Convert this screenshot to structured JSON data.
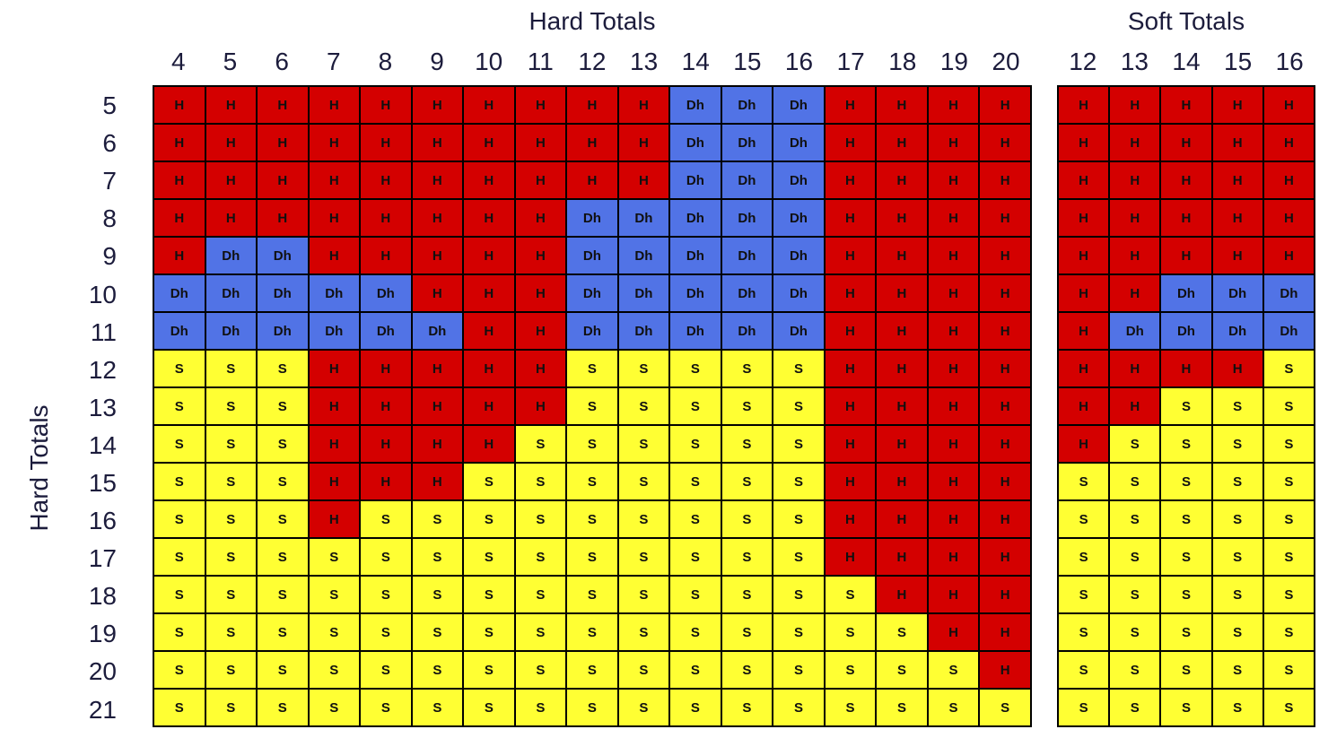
{
  "colors": {
    "H": "#d40000",
    "Dh": "#5173e6",
    "S": "#ffff33"
  },
  "chart_data": [
    {
      "type": "heatmap",
      "title": "Hard Totals",
      "ylabel": "Hard Totals",
      "columns": [
        "4",
        "5",
        "6",
        "7",
        "8",
        "9",
        "10",
        "11",
        "12",
        "13",
        "14",
        "15",
        "16",
        "17",
        "18",
        "19",
        "20"
      ],
      "rows": [
        "5",
        "6",
        "7",
        "8",
        "9",
        "10",
        "11",
        "12",
        "13",
        "14",
        "15",
        "16",
        "17",
        "18",
        "19",
        "20",
        "21"
      ],
      "values": [
        [
          "H",
          "H",
          "H",
          "H",
          "H",
          "H",
          "H",
          "H",
          "H",
          "H",
          "Dh",
          "Dh",
          "Dh",
          "H",
          "H",
          "H",
          "H"
        ],
        [
          "H",
          "H",
          "H",
          "H",
          "H",
          "H",
          "H",
          "H",
          "H",
          "H",
          "Dh",
          "Dh",
          "Dh",
          "H",
          "H",
          "H",
          "H"
        ],
        [
          "H",
          "H",
          "H",
          "H",
          "H",
          "H",
          "H",
          "H",
          "H",
          "H",
          "Dh",
          "Dh",
          "Dh",
          "H",
          "H",
          "H",
          "H"
        ],
        [
          "H",
          "H",
          "H",
          "H",
          "H",
          "H",
          "H",
          "H",
          "Dh",
          "Dh",
          "Dh",
          "Dh",
          "Dh",
          "H",
          "H",
          "H",
          "H"
        ],
        [
          "H",
          "Dh",
          "Dh",
          "H",
          "H",
          "H",
          "H",
          "H",
          "Dh",
          "Dh",
          "Dh",
          "Dh",
          "Dh",
          "H",
          "H",
          "H",
          "H"
        ],
        [
          "Dh",
          "Dh",
          "Dh",
          "Dh",
          "Dh",
          "H",
          "H",
          "H",
          "Dh",
          "Dh",
          "Dh",
          "Dh",
          "Dh",
          "H",
          "H",
          "H",
          "H"
        ],
        [
          "Dh",
          "Dh",
          "Dh",
          "Dh",
          "Dh",
          "Dh",
          "H",
          "H",
          "Dh",
          "Dh",
          "Dh",
          "Dh",
          "Dh",
          "H",
          "H",
          "H",
          "H"
        ],
        [
          "S",
          "S",
          "S",
          "H",
          "H",
          "H",
          "H",
          "H",
          "S",
          "S",
          "S",
          "S",
          "S",
          "H",
          "H",
          "H",
          "H"
        ],
        [
          "S",
          "S",
          "S",
          "H",
          "H",
          "H",
          "H",
          "H",
          "S",
          "S",
          "S",
          "S",
          "S",
          "H",
          "H",
          "H",
          "H"
        ],
        [
          "S",
          "S",
          "S",
          "H",
          "H",
          "H",
          "H",
          "S",
          "S",
          "S",
          "S",
          "S",
          "S",
          "H",
          "H",
          "H",
          "H"
        ],
        [
          "S",
          "S",
          "S",
          "H",
          "H",
          "H",
          "S",
          "S",
          "S",
          "S",
          "S",
          "S",
          "S",
          "H",
          "H",
          "H",
          "H"
        ],
        [
          "S",
          "S",
          "S",
          "H",
          "S",
          "S",
          "S",
          "S",
          "S",
          "S",
          "S",
          "S",
          "S",
          "H",
          "H",
          "H",
          "H"
        ],
        [
          "S",
          "S",
          "S",
          "S",
          "S",
          "S",
          "S",
          "S",
          "S",
          "S",
          "S",
          "S",
          "S",
          "H",
          "H",
          "H",
          "H"
        ],
        [
          "S",
          "S",
          "S",
          "S",
          "S",
          "S",
          "S",
          "S",
          "S",
          "S",
          "S",
          "S",
          "S",
          "S",
          "H",
          "H",
          "H"
        ],
        [
          "S",
          "S",
          "S",
          "S",
          "S",
          "S",
          "S",
          "S",
          "S",
          "S",
          "S",
          "S",
          "S",
          "S",
          "S",
          "H",
          "H"
        ],
        [
          "S",
          "S",
          "S",
          "S",
          "S",
          "S",
          "S",
          "S",
          "S",
          "S",
          "S",
          "S",
          "S",
          "S",
          "S",
          "S",
          "H"
        ],
        [
          "S",
          "S",
          "S",
          "S",
          "S",
          "S",
          "S",
          "S",
          "S",
          "S",
          "S",
          "S",
          "S",
          "S",
          "S",
          "S",
          "S"
        ]
      ]
    },
    {
      "type": "heatmap",
      "title": "Soft Totals",
      "columns": [
        "12",
        "13",
        "14",
        "15",
        "16"
      ],
      "rows": [
        "5",
        "6",
        "7",
        "8",
        "9",
        "10",
        "11",
        "12",
        "13",
        "14",
        "15",
        "16",
        "17",
        "18",
        "19",
        "20",
        "21"
      ],
      "values": [
        [
          "H",
          "H",
          "H",
          "H",
          "H"
        ],
        [
          "H",
          "H",
          "H",
          "H",
          "H"
        ],
        [
          "H",
          "H",
          "H",
          "H",
          "H"
        ],
        [
          "H",
          "H",
          "H",
          "H",
          "H"
        ],
        [
          "H",
          "H",
          "H",
          "H",
          "H"
        ],
        [
          "H",
          "H",
          "Dh",
          "Dh",
          "Dh"
        ],
        [
          "H",
          "Dh",
          "Dh",
          "Dh",
          "Dh"
        ],
        [
          "H",
          "H",
          "H",
          "H",
          "S"
        ],
        [
          "H",
          "H",
          "S",
          "S",
          "S"
        ],
        [
          "H",
          "S",
          "S",
          "S",
          "S"
        ],
        [
          "S",
          "S",
          "S",
          "S",
          "S"
        ],
        [
          "S",
          "S",
          "S",
          "S",
          "S"
        ],
        [
          "S",
          "S",
          "S",
          "S",
          "S"
        ],
        [
          "S",
          "S",
          "S",
          "S",
          "S"
        ],
        [
          "S",
          "S",
          "S",
          "S",
          "S"
        ],
        [
          "S",
          "S",
          "S",
          "S",
          "S"
        ],
        [
          "S",
          "S",
          "S",
          "S",
          "S"
        ]
      ]
    }
  ]
}
